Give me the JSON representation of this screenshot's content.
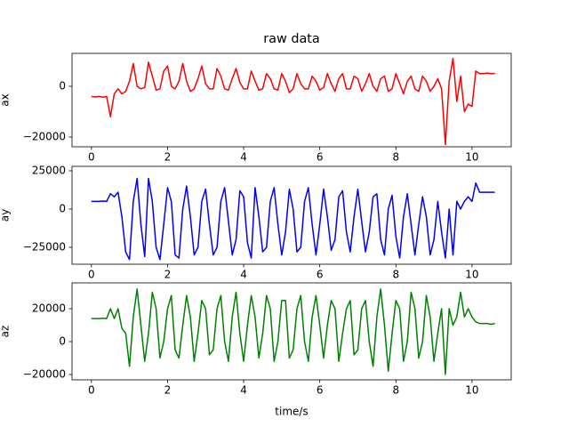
{
  "chart_data": [
    {
      "type": "line",
      "title": "raw data",
      "ylabel": "ax",
      "color": "#ff0000",
      "xlim": [
        -0.51,
        11.03
      ],
      "ylim": [
        -23860,
        12980
      ],
      "xticks": [
        0,
        2,
        4,
        6,
        8,
        10
      ],
      "yticks": [
        {
          "value": -20000,
          "label": "−20000"
        },
        0
      ],
      "x": [
        0,
        0.1,
        0.2,
        0.3,
        0.4,
        0.5,
        0.6,
        0.7,
        0.8,
        0.9,
        1,
        1.1,
        1.2,
        1.3,
        1.4,
        1.5,
        1.6,
        1.7,
        1.8,
        1.9,
        2,
        2.1,
        2.2,
        2.3,
        2.4,
        2.5,
        2.6,
        2.7,
        2.8,
        2.9,
        3,
        3.1,
        3.2,
        3.3,
        3.4,
        3.5,
        3.6,
        3.7,
        3.8,
        3.9,
        4,
        4.1,
        4.2,
        4.3,
        4.4,
        4.5,
        4.6,
        4.7,
        4.8,
        4.9,
        5,
        5.1,
        5.2,
        5.3,
        5.4,
        5.5,
        5.6,
        5.7,
        5.8,
        5.9,
        6,
        6.1,
        6.2,
        6.3,
        6.4,
        6.5,
        6.6,
        6.7,
        6.8,
        6.9,
        7,
        7.1,
        7.2,
        7.3,
        7.4,
        7.5,
        7.6,
        7.7,
        7.8,
        7.9,
        8,
        8.1,
        8.2,
        8.3,
        8.4,
        8.5,
        8.6,
        8.7,
        8.8,
        8.9,
        9,
        9.1,
        9.2,
        9.3,
        9.4,
        9.5,
        9.6,
        9.7,
        9.8,
        9.9,
        10,
        10.1,
        10.2,
        10.3,
        10.4,
        10.5,
        10.6
      ],
      "values": [
        -4000,
        -4200,
        -4000,
        -4300,
        -4000,
        -12000,
        -3000,
        -1000,
        -3000,
        -2000,
        2000,
        9000,
        0,
        -1000,
        -500,
        9500,
        4000,
        -1500,
        -1000,
        6000,
        8000,
        0,
        -1000,
        2000,
        9000,
        2000,
        -2000,
        -1000,
        3000,
        8000,
        1000,
        -1000,
        -1000,
        7000,
        4000,
        -1000,
        -1500,
        3000,
        7000,
        1500,
        -1000,
        -1000,
        6000,
        2000,
        -1500,
        -1000,
        5000,
        3000,
        -1000,
        -1500,
        5000,
        2000,
        -2500,
        -1000,
        5000,
        1000,
        -1000,
        -1000,
        4000,
        2000,
        -1500,
        -500,
        5000,
        1000,
        -2000,
        3000,
        5000,
        -1000,
        -1000,
        4000,
        3000,
        -2000,
        1000,
        5000,
        0,
        -2000,
        3000,
        4000,
        -2000,
        -1000,
        5000,
        1000,
        -3000,
        2000,
        4000,
        -1000,
        -2000,
        4000,
        2000,
        -2000,
        0,
        3000,
        -1000,
        -23000,
        2000,
        11000,
        -6000,
        4000,
        -10000,
        -7000,
        -8000,
        6000,
        5000,
        5000,
        5200,
        5000,
        5100
      ]
    },
    {
      "type": "line",
      "ylabel": "ay",
      "color": "#0000ff",
      "xlim": [
        -0.51,
        11.03
      ],
      "ylim": [
        -36050,
        27900
      ],
      "xticks": [
        0,
        2,
        4,
        6,
        8,
        10
      ],
      "yticks": [
        {
          "value": -25000,
          "label": "−25000"
        },
        0,
        25000
      ],
      "x": [
        0,
        0.1,
        0.2,
        0.3,
        0.4,
        0.5,
        0.6,
        0.7,
        0.8,
        0.9,
        1,
        1.1,
        1.2,
        1.3,
        1.4,
        1.5,
        1.6,
        1.7,
        1.8,
        1.9,
        2,
        2.1,
        2.2,
        2.3,
        2.4,
        2.5,
        2.6,
        2.7,
        2.8,
        2.9,
        3,
        3.1,
        3.2,
        3.3,
        3.4,
        3.5,
        3.6,
        3.7,
        3.8,
        3.9,
        4,
        4.1,
        4.2,
        4.3,
        4.4,
        4.5,
        4.6,
        4.7,
        4.8,
        4.9,
        5,
        5.1,
        5.2,
        5.3,
        5.4,
        5.5,
        5.6,
        5.7,
        5.8,
        5.9,
        6,
        6.1,
        6.2,
        6.3,
        6.4,
        6.5,
        6.6,
        6.7,
        6.8,
        6.9,
        7,
        7.1,
        7.2,
        7.3,
        7.4,
        7.5,
        7.6,
        7.7,
        7.8,
        7.9,
        8,
        8.1,
        8.2,
        8.3,
        8.4,
        8.5,
        8.6,
        8.7,
        8.8,
        8.9,
        9,
        9.1,
        9.2,
        9.3,
        9.4,
        9.5,
        9.6,
        9.7,
        9.8,
        9.9,
        10,
        10.1,
        10.2,
        10.3,
        10.4,
        10.5,
        10.6
      ],
      "values": [
        5000,
        5000,
        5000,
        5200,
        5000,
        10000,
        8000,
        11000,
        -5000,
        -28000,
        -33000,
        5000,
        20000,
        -10000,
        -31000,
        20000,
        5000,
        -25000,
        -33000,
        -10000,
        14000,
        5000,
        -30000,
        -32000,
        0,
        15000,
        -5000,
        -30000,
        -25000,
        5000,
        13000,
        -10000,
        -30000,
        -25000,
        5000,
        14000,
        -8000,
        -30000,
        -20000,
        12000,
        8000,
        -22000,
        -32000,
        14000,
        -5000,
        -28000,
        -25000,
        5000,
        14000,
        -10000,
        -30000,
        -15000,
        13000,
        0,
        -28000,
        -25000,
        5000,
        14000,
        -10000,
        -30000,
        -10000,
        13000,
        -5000,
        -27000,
        -20000,
        8000,
        12000,
        -15000,
        -28000,
        -5000,
        13000,
        -8000,
        -28000,
        -15000,
        8000,
        10000,
        -20000,
        -30000,
        0,
        9000,
        -18000,
        -32000,
        -5000,
        10000,
        -10000,
        -30000,
        -10000,
        8000,
        -5000,
        -30000,
        -20000,
        5000,
        -15000,
        -32000,
        0,
        -30000,
        5000,
        0,
        5000,
        8000,
        5000,
        17000,
        11000,
        11000,
        11000,
        11000,
        11000
      ]
    },
    {
      "type": "line",
      "ylabel": "az",
      "xlabel": "time/s",
      "color": "#008000",
      "xlim": [
        -0.51,
        11.03
      ],
      "ylim": [
        -23240,
        35680
      ],
      "xticks": [
        0,
        2,
        4,
        6,
        8,
        10
      ],
      "yticks": [
        {
          "value": -20000,
          "label": "−20000"
        },
        0,
        20000
      ],
      "x": [
        0,
        0.1,
        0.2,
        0.3,
        0.4,
        0.5,
        0.6,
        0.7,
        0.8,
        0.9,
        1,
        1.1,
        1.2,
        1.3,
        1.4,
        1.5,
        1.6,
        1.7,
        1.8,
        1.9,
        2,
        2.1,
        2.2,
        2.3,
        2.4,
        2.5,
        2.6,
        2.7,
        2.8,
        2.9,
        3,
        3.1,
        3.2,
        3.3,
        3.4,
        3.5,
        3.6,
        3.7,
        3.8,
        3.9,
        4,
        4.1,
        4.2,
        4.3,
        4.4,
        4.5,
        4.6,
        4.7,
        4.8,
        4.9,
        5,
        5.1,
        5.2,
        5.3,
        5.4,
        5.5,
        5.6,
        5.7,
        5.8,
        5.9,
        6,
        6.1,
        6.2,
        6.3,
        6.4,
        6.5,
        6.6,
        6.7,
        6.8,
        6.9,
        7,
        7.1,
        7.2,
        7.3,
        7.4,
        7.5,
        7.6,
        7.7,
        7.8,
        7.9,
        8,
        8.1,
        8.2,
        8.3,
        8.4,
        8.5,
        8.6,
        8.7,
        8.8,
        8.9,
        9,
        9.1,
        9.2,
        9.3,
        9.4,
        9.5,
        9.6,
        9.7,
        9.8,
        9.9,
        10,
        10.1,
        10.2,
        10.3,
        10.4,
        10.5,
        10.6
      ],
      "values": [
        14000,
        14000,
        14000,
        14200,
        14000,
        20000,
        14000,
        20000,
        8000,
        5000,
        -15000,
        15000,
        32000,
        10000,
        -12000,
        5000,
        30000,
        20000,
        -10000,
        0,
        20000,
        28000,
        -5000,
        -10000,
        10000,
        28000,
        15000,
        -12000,
        5000,
        25000,
        20000,
        -8000,
        -5000,
        20000,
        28000,
        0,
        -12000,
        15000,
        30000,
        5000,
        -12000,
        10000,
        28000,
        15000,
        -10000,
        5000,
        28000,
        20000,
        -12000,
        0,
        25000,
        25000,
        -10000,
        -5000,
        20000,
        28000,
        0,
        -12000,
        15000,
        28000,
        10000,
        -10000,
        10000,
        25000,
        20000,
        -12000,
        5000,
        20000,
        25000,
        -8000,
        -5000,
        20000,
        25000,
        0,
        -15000,
        15000,
        32000,
        10000,
        -18000,
        5000,
        25000,
        20000,
        -12000,
        0,
        30000,
        20000,
        -10000,
        0,
        28000,
        15000,
        -12000,
        5000,
        20000,
        -20000,
        20000,
        10000,
        15000,
        30000,
        15000,
        20000,
        15000,
        12000,
        11000,
        11000,
        11000,
        10500,
        11000
      ]
    }
  ]
}
